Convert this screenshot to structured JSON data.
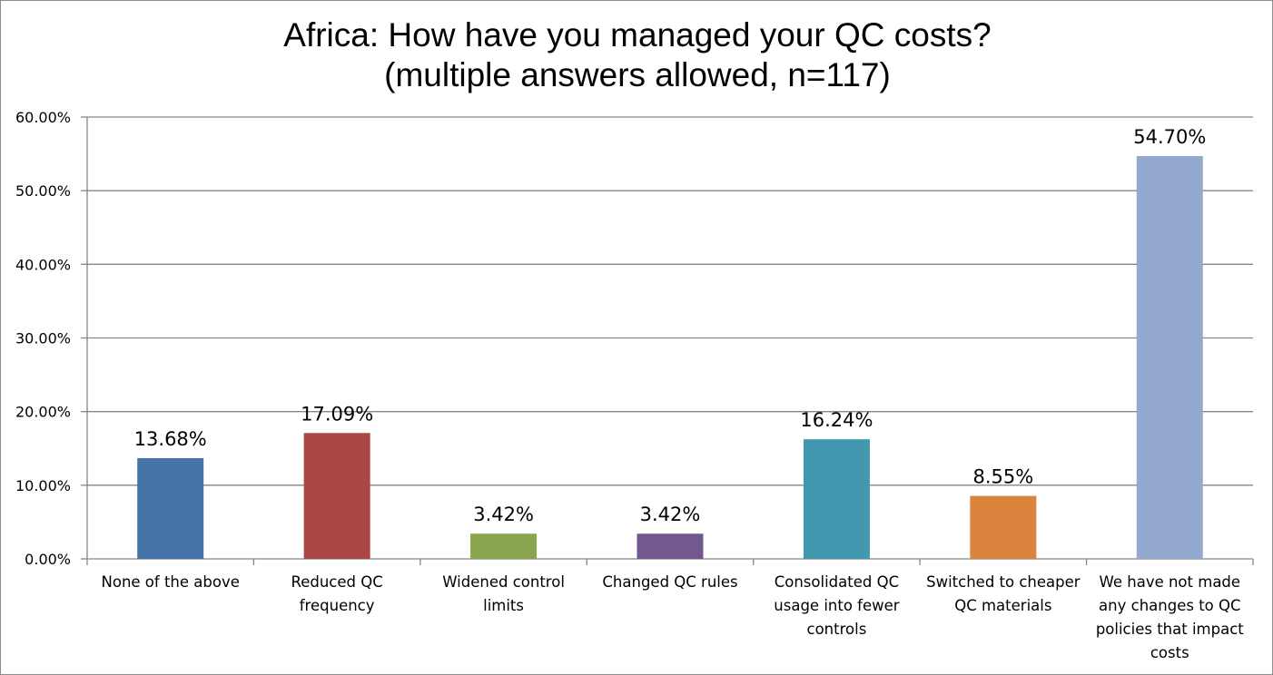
{
  "chart_data": {
    "type": "bar",
    "title_line1": "Africa: How have you managed your QC costs?",
    "title_line2": "(multiple answers allowed, n=117)",
    "categories": [
      "None of the above",
      "Reduced QC frequency",
      "Widened control limits",
      "Changed QC rules",
      "Consolidated QC usage into fewer controls",
      "Switched to cheaper QC materials",
      "We have not made any changes to QC policies that impact costs"
    ],
    "category_label_lines": [
      [
        "None of the above"
      ],
      [
        "Reduced QC",
        "frequency"
      ],
      [
        "Widened control",
        "limits"
      ],
      [
        "Changed QC rules"
      ],
      [
        "Consolidated QC",
        "usage into fewer",
        "controls"
      ],
      [
        "Switched to cheaper",
        "QC materials"
      ],
      [
        "We have not made",
        "any changes to QC",
        "policies that impact",
        "costs"
      ]
    ],
    "values": [
      13.68,
      17.09,
      3.42,
      3.42,
      16.24,
      8.55,
      54.7
    ],
    "value_labels": [
      "13.68%",
      "17.09%",
      "3.42%",
      "3.42%",
      "16.24%",
      "8.55%",
      "54.70%"
    ],
    "colors": [
      "#4572a7",
      "#aa4643",
      "#89a54e",
      "#71588f",
      "#4198af",
      "#db843d",
      "#93a9cf"
    ],
    "ylim": [
      0,
      60
    ],
    "yticks": [
      0,
      10,
      20,
      30,
      40,
      50,
      60
    ],
    "ytick_labels": [
      "0.00%",
      "10.00%",
      "20.00%",
      "30.00%",
      "40.00%",
      "50.00%",
      "60.00%"
    ],
    "grid": true,
    "legend": "none",
    "axis_color": "#868686",
    "grid_color": "#868686"
  }
}
